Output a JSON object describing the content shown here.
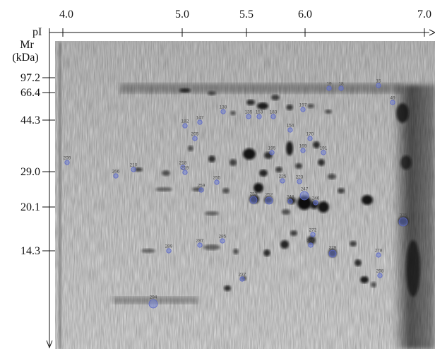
{
  "axes": {
    "x": {
      "label": "pI",
      "ticks": [
        "4.0",
        "5.0",
        "5.5",
        "6.0",
        "7.0"
      ]
    },
    "y": {
      "label_lines": [
        "Mr",
        "(kDa)"
      ],
      "ticks": [
        "97.2",
        "66.4",
        "44.3",
        "29.0",
        "20.1",
        "14.3"
      ]
    }
  },
  "spots": [
    {
      "label": "19"
    },
    {
      "label": "18"
    },
    {
      "label": "15"
    },
    {
      "label": "49"
    },
    {
      "label": "138"
    },
    {
      "label": "135"
    },
    {
      "label": "153"
    },
    {
      "label": "183"
    },
    {
      "label": "182"
    },
    {
      "label": "147"
    },
    {
      "label": "197"
    },
    {
      "label": "154"
    },
    {
      "label": "170"
    },
    {
      "label": "205"
    },
    {
      "label": "195"
    },
    {
      "label": "169"
    },
    {
      "label": "191"
    },
    {
      "label": "209"
    },
    {
      "label": "210"
    },
    {
      "label": "218"
    },
    {
      "label": "219"
    },
    {
      "label": "266"
    },
    {
      "label": "225"
    },
    {
      "label": "255"
    },
    {
      "label": "259"
    },
    {
      "label": "223"
    },
    {
      "label": "253"
    },
    {
      "label": "252"
    },
    {
      "label": "247"
    },
    {
      "label": "248"
    },
    {
      "label": "246"
    },
    {
      "label": "335"
    },
    {
      "label": "272"
    },
    {
      "label": "280"
    },
    {
      "label": "279"
    },
    {
      "label": "289"
    },
    {
      "label": "287"
    },
    {
      "label": "285"
    },
    {
      "label": "278"
    },
    {
      "label": "298"
    },
    {
      "label": "237"
    },
    {
      "label": "294"
    }
  ]
}
